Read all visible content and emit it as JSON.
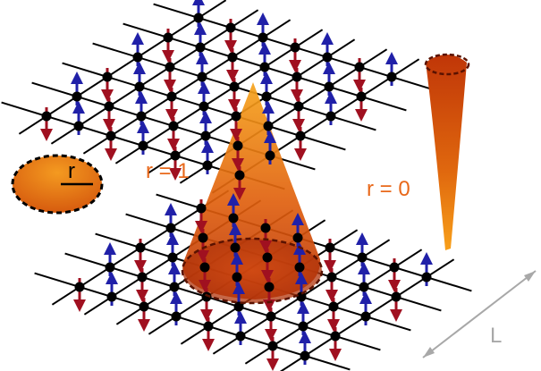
{
  "labels": {
    "disk_radius": "r",
    "cone_label": "r = 1",
    "needle_label": "r = 0",
    "size_label": "L"
  },
  "colors": {
    "up_spin": "#2020a8",
    "down_spin": "#a01020",
    "lattice_line": "#000000",
    "site": "#000000",
    "orange_label": "#e8681a",
    "dimension_arrow": "#a8a8a8"
  },
  "icons": {
    "up_spin": "up-arrow-icon",
    "down_spin": "down-arrow-icon"
  }
}
